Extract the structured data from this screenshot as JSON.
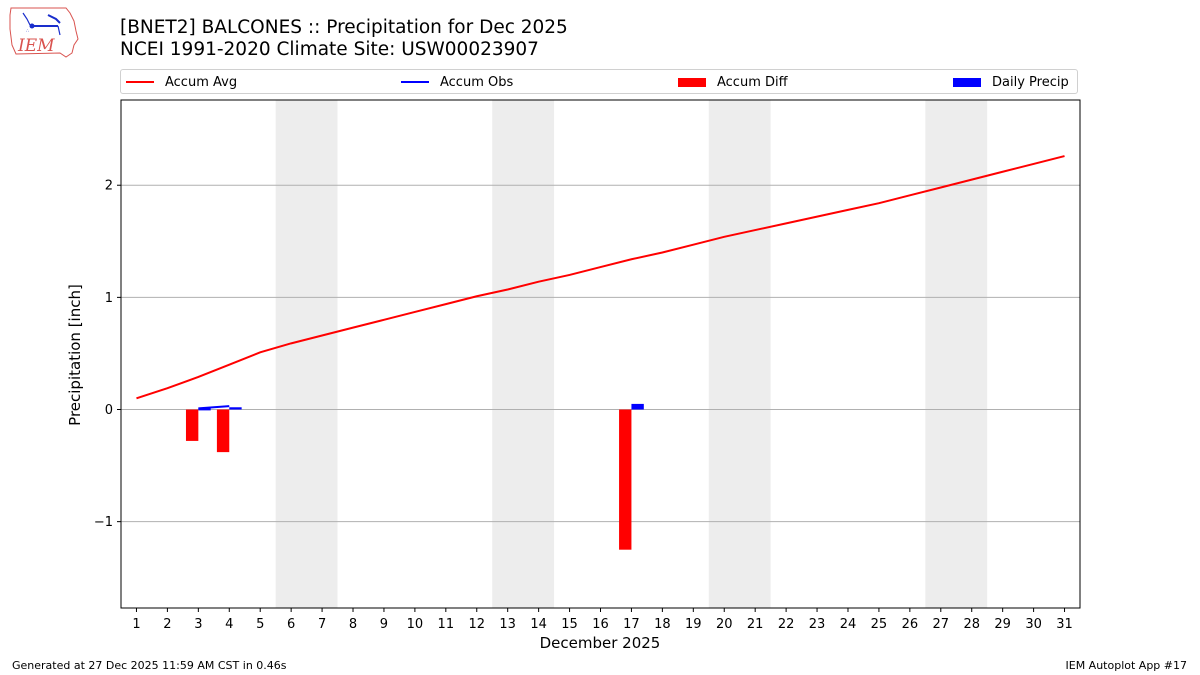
{
  "header": {
    "logo_text": "IEM",
    "title_line1": "[BNET2] BALCONES :: Precipitation for Dec 2025",
    "title_line2": "NCEI 1991-2020 Climate Site: USW00023907"
  },
  "legend": [
    {
      "label": "Accum Avg",
      "type": "line",
      "color": "#ff0000"
    },
    {
      "label": "Accum Obs",
      "type": "line",
      "color": "#0000ff"
    },
    {
      "label": "Accum Diff",
      "type": "bar",
      "color": "#ff0000"
    },
    {
      "label": "Daily Precip",
      "type": "bar",
      "color": "#0000ff"
    }
  ],
  "footer": {
    "generated": "Generated at 27 Dec 2025 11:59 AM CST in 0.46s",
    "app": "IEM Autoplot App #17"
  },
  "chart_data": {
    "type": "line",
    "title": "[BNET2] BALCONES :: Precipitation for Dec 2025",
    "subtitle": "NCEI 1991-2020 Climate Site: USW00023907",
    "xlabel": "December 2025",
    "ylabel": "Precipitation [inch]",
    "x": [
      1,
      2,
      3,
      4,
      5,
      6,
      7,
      8,
      9,
      10,
      11,
      12,
      13,
      14,
      15,
      16,
      17,
      18,
      19,
      20,
      21,
      22,
      23,
      24,
      25,
      26,
      27,
      28,
      29,
      30,
      31
    ],
    "xticks": [
      "1",
      "2",
      "3",
      "4",
      "5",
      "6",
      "7",
      "8",
      "9",
      "10",
      "11",
      "12",
      "13",
      "14",
      "15",
      "16",
      "17",
      "18",
      "19",
      "20",
      "21",
      "22",
      "23",
      "24",
      "25",
      "26",
      "27",
      "28",
      "29",
      "30",
      "31"
    ],
    "yticks": [
      -1,
      0,
      1,
      2
    ],
    "ytick_labels": [
      "−1",
      "0",
      "1",
      "2"
    ],
    "ylim": [
      -1.77,
      2.76
    ],
    "xlim": [
      0.5,
      31.5
    ],
    "grid": "y",
    "legend_position": "top, above plot",
    "weekend_shading": [
      [
        5.5,
        7.5
      ],
      [
        12.5,
        14.5
      ],
      [
        19.5,
        21.5
      ],
      [
        26.5,
        28.5
      ]
    ],
    "series": [
      {
        "name": "Accum Avg",
        "type": "line",
        "color": "#ff0000",
        "values": [
          0.1,
          0.19,
          0.29,
          0.4,
          0.51,
          0.59,
          0.66,
          0.73,
          0.8,
          0.87,
          0.94,
          1.01,
          1.07,
          1.14,
          1.2,
          1.27,
          1.34,
          1.4,
          1.47,
          1.54,
          1.6,
          1.66,
          1.72,
          1.78,
          1.84,
          1.91,
          1.98,
          2.05,
          2.12,
          2.19,
          2.26
        ]
      },
      {
        "name": "Accum Obs",
        "type": "line",
        "color": "#0000ff",
        "x": [
          3,
          4
        ],
        "values": [
          0.01,
          0.03
        ]
      },
      {
        "name": "Accum Diff",
        "type": "bar",
        "color": "#ff0000",
        "x": [
          3,
          4,
          17
        ],
        "values": [
          -0.28,
          -0.38,
          -1.25
        ]
      },
      {
        "name": "Daily Precip",
        "type": "bar",
        "color": "#0000ff",
        "x": [
          3,
          4,
          17
        ],
        "values": [
          0.01,
          0.02,
          0.05
        ]
      }
    ]
  }
}
